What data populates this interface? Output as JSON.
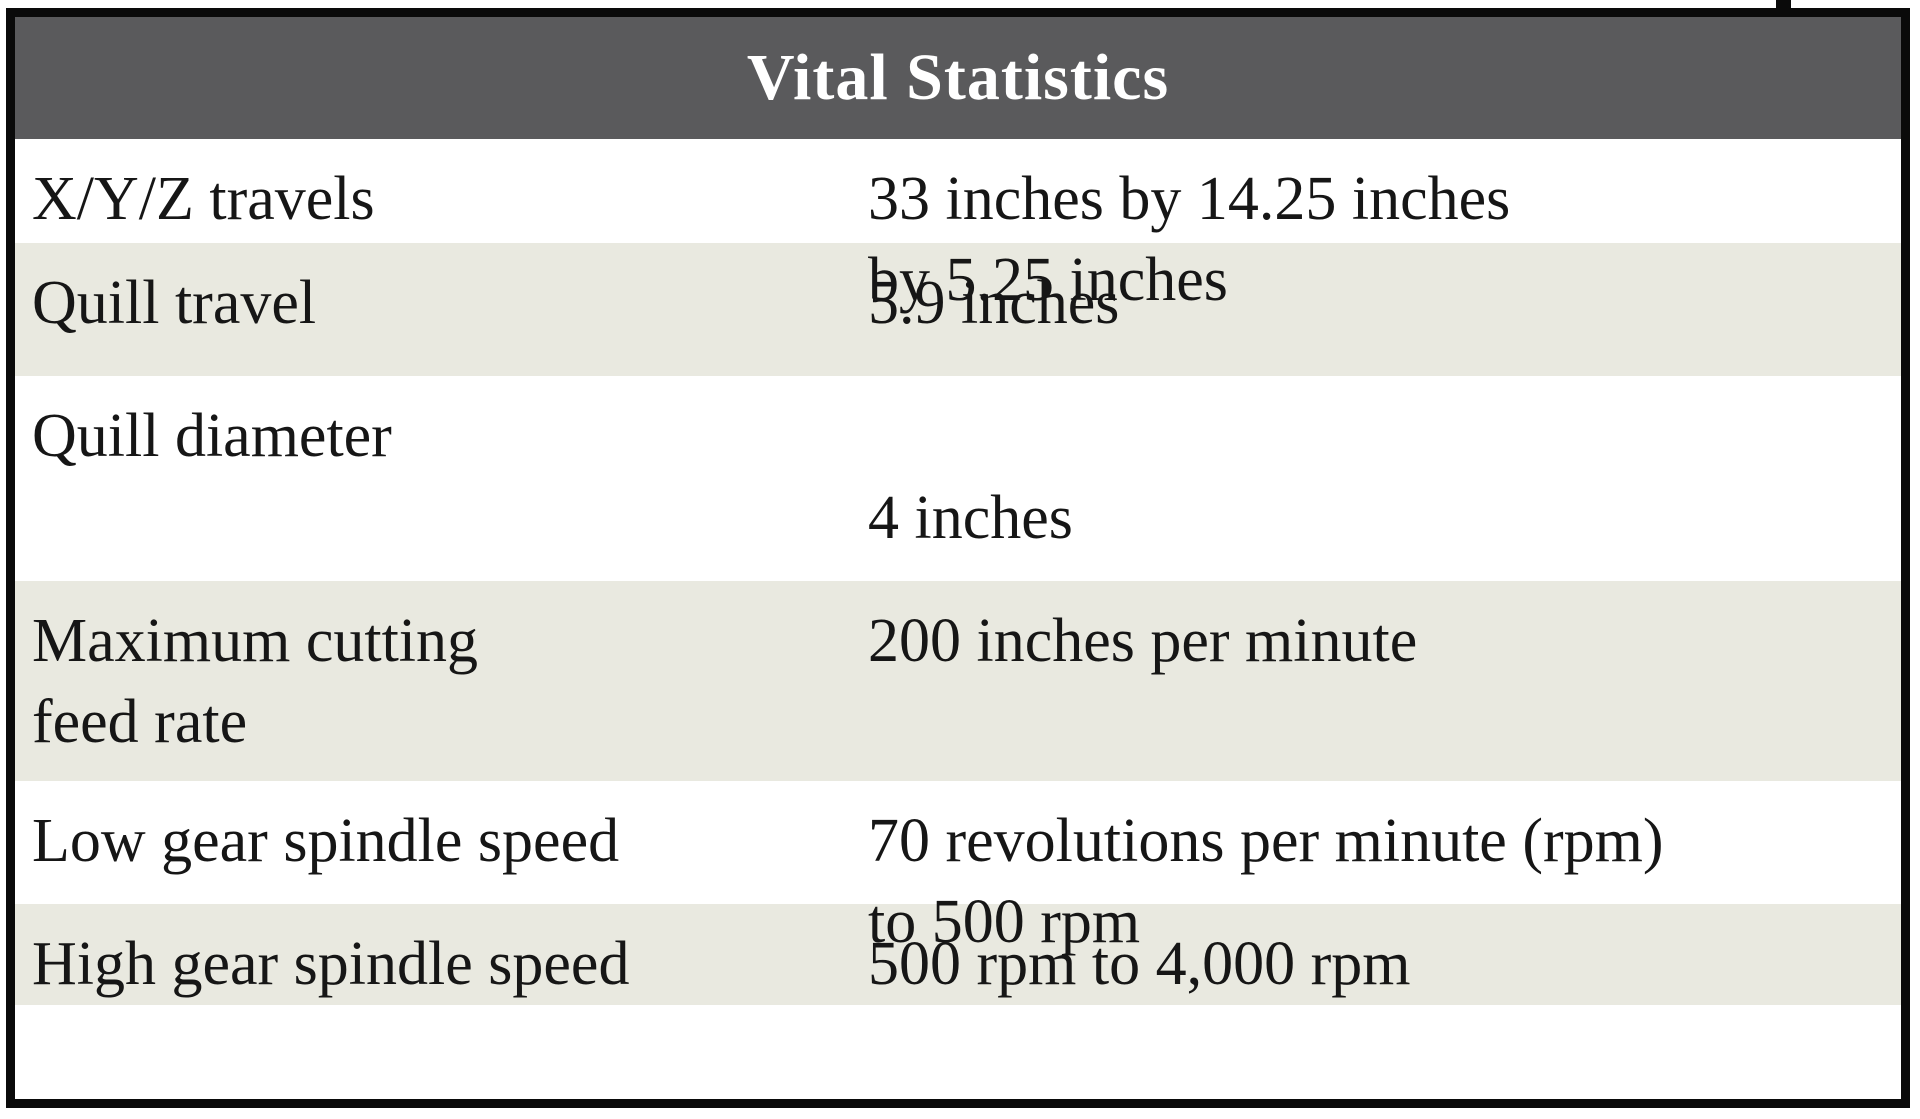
{
  "table": {
    "title": "Vital Statistics",
    "rows": [
      {
        "label": "X/Y/Z travels",
        "value": "33 inches by 14.25 inches\nby 5.25 inches"
      },
      {
        "label": "Quill travel",
        "value": "5.9 inches"
      },
      {
        "label": "Quill diameter",
        "value": "4 inches"
      },
      {
        "label": "Maximum cutting\nfeed rate",
        "value": "200 inches per minute"
      },
      {
        "label": "Low gear spindle speed",
        "value": "70 revolutions per minute (rpm)\nto 500 rpm"
      },
      {
        "label": "High gear spindle speed",
        "value": "500 rpm to 4,000 rpm"
      }
    ],
    "colors": {
      "header_bg": "#5a5a5c",
      "header_text": "#ffffff",
      "row_alt_bg": "#e9e9e0",
      "row_bg": "#ffffff",
      "border": "#0a0a0a",
      "text": "#161616"
    }
  }
}
